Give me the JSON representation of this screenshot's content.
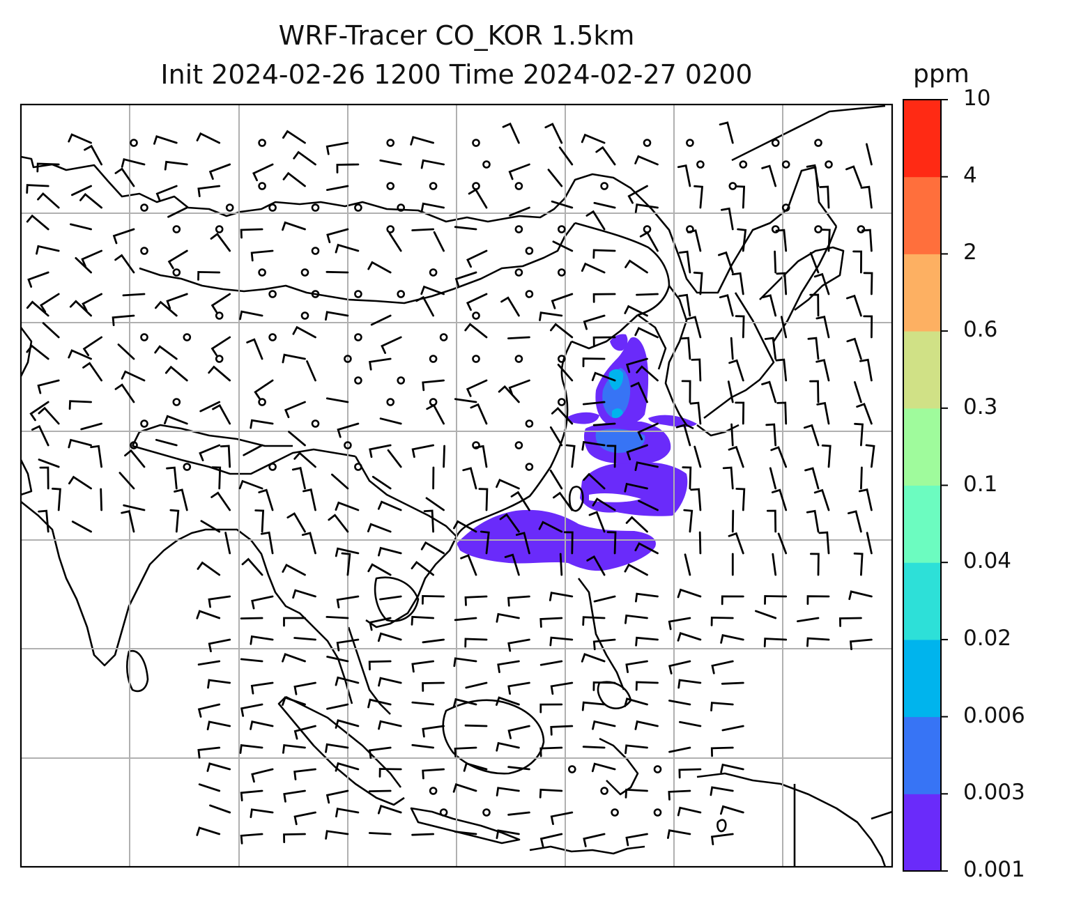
{
  "title": {
    "line1": "WRF-Tracer CO_KOR 1.5km",
    "line2": "Init 2024-02-26 1200 Time 2024-02-27 0200"
  },
  "colorbar": {
    "unit": "ppm",
    "levels": [
      "0.001",
      "0.003",
      "0.006",
      "0.02",
      "0.04",
      "0.1",
      "0.3",
      "0.6",
      "2",
      "4",
      "10"
    ],
    "colors": [
      "#6a2bfa",
      "#3774f5",
      "#00b4ed",
      "#2de0d8",
      "#6cfcc0",
      "#9ffb9c",
      "#d0e186",
      "#fdb062",
      "#ff6f3c",
      "#ff2a14"
    ]
  },
  "map": {
    "grid": "on",
    "wind_barbs": "on",
    "region": "East and Southeast Asia",
    "tracer_plume_color": "#6a2bfa"
  }
}
